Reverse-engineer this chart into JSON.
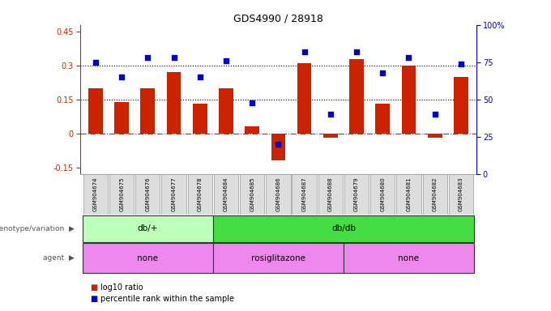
{
  "title": "GDS4990 / 28918",
  "samples": [
    "GSM904674",
    "GSM904675",
    "GSM904676",
    "GSM904677",
    "GSM904678",
    "GSM904684",
    "GSM904685",
    "GSM904686",
    "GSM904687",
    "GSM904688",
    "GSM904679",
    "GSM904680",
    "GSM904681",
    "GSM904682",
    "GSM904683"
  ],
  "log10_ratio": [
    0.2,
    0.14,
    0.2,
    0.27,
    0.13,
    0.2,
    0.03,
    -0.12,
    0.31,
    -0.02,
    0.33,
    0.13,
    0.3,
    -0.02,
    0.25
  ],
  "percentile": [
    75,
    65,
    78,
    78,
    65,
    76,
    48,
    20,
    82,
    40,
    82,
    68,
    78,
    40,
    74
  ],
  "bar_color": "#cc2200",
  "dot_color": "#0000cc",
  "genotype_groups": [
    {
      "label": "db/+",
      "start": 0,
      "end": 5,
      "color": "#bbffbb"
    },
    {
      "label": "db/db",
      "start": 5,
      "end": 15,
      "color": "#44dd44"
    }
  ],
  "agent_groups": [
    {
      "label": "none",
      "start": 0,
      "end": 5,
      "color": "#ee88ee"
    },
    {
      "label": "rosiglitazone",
      "start": 5,
      "end": 10,
      "color": "#ee88ee"
    },
    {
      "label": "none",
      "start": 10,
      "end": 15,
      "color": "#ee88ee"
    }
  ],
  "ylim_left": [
    -0.18,
    0.48
  ],
  "ylim_right": [
    0,
    100
  ],
  "yticks_left": [
    -0.15,
    0,
    0.15,
    0.3,
    0.45
  ],
  "yticks_right": [
    0,
    25,
    50,
    75,
    100
  ],
  "hline_positions": [
    0.15,
    0.3
  ],
  "zero_line": 0.0,
  "legend": [
    {
      "label": "log10 ratio",
      "color": "#cc2200"
    },
    {
      "label": "percentile rank within the sample",
      "color": "#0000cc"
    }
  ]
}
